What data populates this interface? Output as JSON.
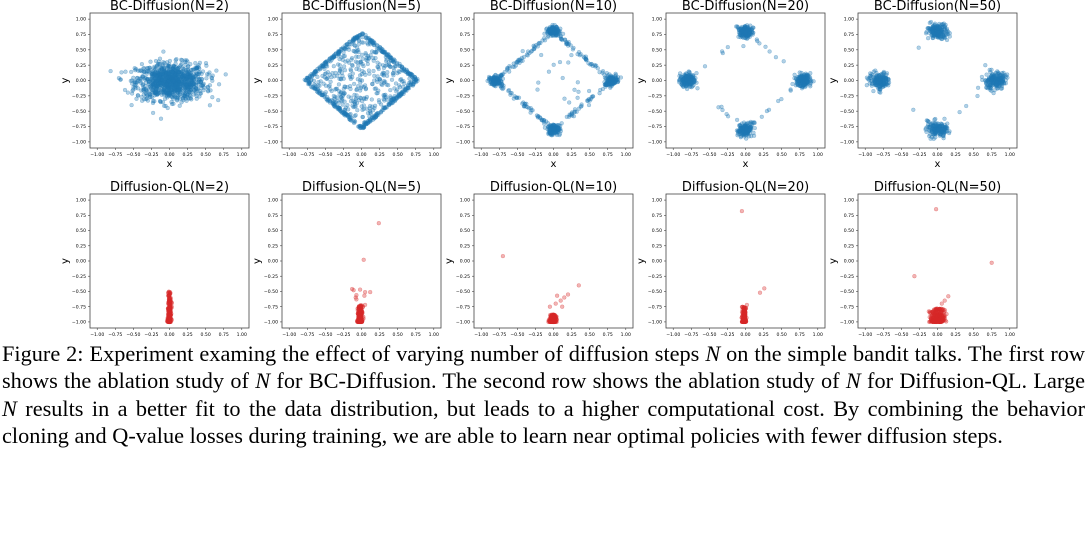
{
  "chart_data": [
    {
      "type": "scatter",
      "title": "BC-Diffusion(N=2)",
      "xlabel": "x",
      "ylabel": "y",
      "xlim": [
        -1.1,
        1.1
      ],
      "ylim": [
        -1.1,
        1.1
      ],
      "color": "#1f77b4",
      "distribution": {
        "kind": "gaussian",
        "center": [
          0.02,
          -0.02
        ],
        "std": [
          0.24,
          0.15
        ],
        "count": 1000
      }
    },
    {
      "type": "scatter",
      "title": "BC-Diffusion(N=5)",
      "xlabel": "x",
      "ylabel": "y",
      "xlim": [
        -1.1,
        1.1
      ],
      "ylim": [
        -1.1,
        1.1
      ],
      "color": "#1f77b4",
      "distribution": {
        "kind": "diamond-fill",
        "radius": 0.8,
        "count": 800
      }
    },
    {
      "type": "scatter",
      "title": "BC-Diffusion(N=10)",
      "xlabel": "x",
      "ylabel": "y",
      "xlim": [
        -1.1,
        1.1
      ],
      "ylim": [
        -1.1,
        1.1
      ],
      "color": "#1f77b4",
      "distribution": {
        "kind": "diamond-edge",
        "radius": 0.8,
        "vertex_share": 0.7,
        "spread": 0.04,
        "inner": 20,
        "count": 700
      }
    },
    {
      "type": "scatter",
      "title": "BC-Diffusion(N=20)",
      "xlabel": "x",
      "ylabel": "y",
      "xlim": [
        -1.1,
        1.1
      ],
      "ylim": [
        -1.1,
        1.1
      ],
      "color": "#1f77b4",
      "distribution": {
        "kind": "diamond-edge",
        "radius": 0.8,
        "vertex_share": 0.93,
        "spread": 0.05,
        "inner": 0,
        "count": 700
      }
    },
    {
      "type": "scatter",
      "title": "BC-Diffusion(N=50)",
      "xlabel": "x",
      "ylabel": "y",
      "xlim": [
        -1.1,
        1.1
      ],
      "ylim": [
        -1.1,
        1.1
      ],
      "color": "#1f77b4",
      "distribution": {
        "kind": "diamond-edge",
        "radius": 0.8,
        "vertex_share": 0.99,
        "spread": 0.07,
        "inner": 0,
        "count": 700
      }
    },
    {
      "type": "scatter",
      "title": "Diffusion-QL(N=2)",
      "xlabel": "x",
      "ylabel": "y",
      "xlim": [
        -1.1,
        1.1
      ],
      "ylim": [
        -1.1,
        1.1
      ],
      "color": "#d62728",
      "distribution": {
        "kind": "column",
        "center_x": 0.0,
        "y_range": [
          -1.0,
          -0.5
        ],
        "std_x": 0.012,
        "count": 250
      },
      "outliers": []
    },
    {
      "type": "scatter",
      "title": "Diffusion-QL(N=5)",
      "xlabel": "x",
      "ylabel": "y",
      "xlim": [
        -1.1,
        1.1
      ],
      "ylim": [
        -1.1,
        1.1
      ],
      "color": "#d62728",
      "distribution": {
        "kind": "column",
        "center_x": -0.02,
        "y_range": [
          -1.0,
          -0.72
        ],
        "std_x": 0.015,
        "count": 250
      },
      "outliers": [
        [
          0.24,
          0.62
        ],
        [
          0.03,
          0.02
        ],
        [
          -0.13,
          -0.46
        ],
        [
          -0.11,
          -0.48
        ],
        [
          -0.02,
          -0.47
        ],
        [
          0.12,
          -0.51
        ],
        [
          0.05,
          -0.51
        ],
        [
          -0.07,
          -0.56
        ],
        [
          -0.08,
          -0.6
        ],
        [
          -0.07,
          -0.63
        ],
        [
          0.04,
          -0.57
        ],
        [
          0.05,
          -0.72
        ]
      ]
    },
    {
      "type": "scatter",
      "title": "Diffusion-QL(N=10)",
      "xlabel": "x",
      "ylabel": "y",
      "xlim": [
        -1.1,
        1.1
      ],
      "ylim": [
        -1.1,
        1.1
      ],
      "color": "#d62728",
      "distribution": {
        "kind": "column",
        "center_x": -0.01,
        "y_range": [
          -1.0,
          -0.88
        ],
        "std_x": 0.02,
        "count": 250
      },
      "outliers": [
        [
          -0.7,
          0.08
        ],
        [
          0.35,
          -0.4
        ],
        [
          0.2,
          -0.55
        ],
        [
          0.15,
          -0.6
        ],
        [
          0.05,
          -0.57
        ],
        [
          0.1,
          -0.65
        ],
        [
          0.03,
          -0.7
        ],
        [
          -0.05,
          -0.75
        ],
        [
          0.12,
          -0.75
        ]
      ]
    },
    {
      "type": "scatter",
      "title": "Diffusion-QL(N=20)",
      "xlabel": "x",
      "ylabel": "y",
      "xlim": [
        -1.1,
        1.1
      ],
      "ylim": [
        -1.1,
        1.1
      ],
      "color": "#d62728",
      "distribution": {
        "kind": "column",
        "center_x": -0.02,
        "y_range": [
          -1.0,
          -0.75
        ],
        "std_x": 0.012,
        "count": 250
      },
      "outliers": [
        [
          -0.05,
          0.82
        ],
        [
          0.26,
          -0.45
        ],
        [
          0.2,
          -0.52
        ],
        [
          0.02,
          -0.72
        ]
      ]
    },
    {
      "type": "scatter",
      "title": "Diffusion-QL(N=50)",
      "xlabel": "x",
      "ylabel": "y",
      "xlim": [
        -1.1,
        1.1
      ],
      "ylim": [
        -1.1,
        1.1
      ],
      "color": "#d62728",
      "distribution": {
        "kind": "column",
        "center_x": 0.0,
        "y_range": [
          -1.0,
          -0.78
        ],
        "std_x": 0.05,
        "count": 250
      },
      "outliers": [
        [
          -0.02,
          0.85
        ],
        [
          0.75,
          -0.03
        ],
        [
          -0.32,
          -0.25
        ],
        [
          0.15,
          -0.58
        ],
        [
          0.1,
          -0.65
        ],
        [
          0.06,
          -0.7
        ],
        [
          -0.05,
          -0.8
        ]
      ]
    }
  ],
  "ticks": [
    "−1.00",
    "−0.75",
    "−0.50",
    "−0.25",
    "0.00",
    "0.25",
    "0.50",
    "0.75",
    "1.00"
  ],
  "tick_values": [
    -1,
    -0.75,
    -0.5,
    -0.25,
    0,
    0.25,
    0.5,
    0.75,
    1
  ],
  "caption": {
    "label": "Figure 2:",
    "parts": [
      " Experiment examing the effect of varying number of diffusion steps ",
      "N",
      " on the simple bandit talks. The first row shows the ablation study of ",
      "N",
      " for BC-Diffusion. The second row shows the ablation study of ",
      "N",
      " for Diffusion-QL. Large ",
      "N",
      " results in a better fit to the data distribution, but leads to a higher computational cost. By combining the behavior cloning and Q-value losses during training, we are able to learn near optimal policies with fewer diffusion steps."
    ]
  }
}
